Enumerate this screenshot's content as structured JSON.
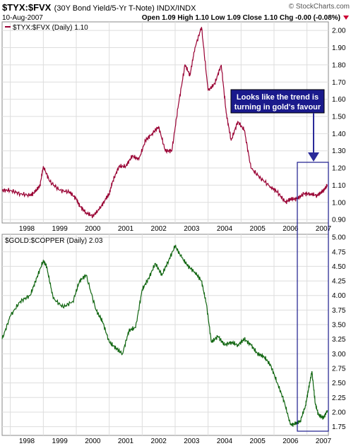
{
  "header": {
    "symbol": "$TYX:$FVX",
    "description": "(30Y Bond Yield/5-Yr T-Note)",
    "exchange": "INDX/INDX",
    "brand": "© StockCharts.com",
    "date": "10-Aug-2007",
    "quote": "Open 1.09  High 1.10  Low 1.09  Close 1.10  Chg -0.00 (-0.08%)",
    "colors": {
      "brand_text": "#555555",
      "change_arrow": "#cc0033"
    }
  },
  "annotation": {
    "line1": "Looks like the trend is",
    "line2": "turning in gold's favour",
    "box_color": "#1a1a8c",
    "arrow_color": "#2a2a99"
  },
  "chart_data": [
    {
      "type": "line",
      "legend": "$TYX:$FVX (Daily) 1.10",
      "color": "#990033",
      "ylim": [
        0.88,
        2.05
      ],
      "yticks": [
        "0.90",
        "1.00",
        "1.10",
        "1.20",
        "1.30",
        "1.40",
        "1.50",
        "1.60",
        "1.70",
        "1.80",
        "1.90",
        "2.00"
      ],
      "xticks": [
        "1998",
        "1999",
        "2000",
        "2001",
        "2002",
        "2003",
        "2004",
        "2005",
        "2006",
        "2007"
      ],
      "xlim": [
        1997.75,
        2007.65
      ],
      "x": [
        1997.75,
        1998.0,
        1998.3,
        1998.6,
        1998.75,
        1998.9,
        1999.0,
        1999.2,
        1999.5,
        1999.8,
        2000.0,
        2000.1,
        2000.3,
        2000.5,
        2000.7,
        2000.9,
        2001.0,
        2001.1,
        2001.3,
        2001.5,
        2001.7,
        2001.9,
        2002.1,
        2002.3,
        2002.5,
        2002.7,
        2002.9,
        2003.1,
        2003.3,
        2003.45,
        2003.6,
        2003.8,
        2004.0,
        2004.2,
        2004.4,
        2004.55,
        2004.7,
        2004.9,
        2005.1,
        2005.3,
        2005.6,
        2005.9,
        2006.1,
        2006.35,
        2006.5,
        2006.7,
        2006.9,
        2007.1,
        2007.3,
        2007.45,
        2007.55,
        2007.62
      ],
      "y": [
        1.07,
        1.07,
        1.05,
        1.04,
        1.06,
        1.1,
        1.21,
        1.12,
        1.07,
        1.06,
        1.02,
        0.98,
        0.94,
        0.92,
        0.96,
        1.02,
        1.05,
        1.12,
        1.21,
        1.21,
        1.27,
        1.25,
        1.36,
        1.4,
        1.44,
        1.3,
        1.3,
        1.57,
        1.8,
        1.74,
        1.9,
        2.02,
        1.65,
        1.69,
        1.8,
        1.52,
        1.36,
        1.47,
        1.42,
        1.2,
        1.14,
        1.09,
        1.06,
        1.0,
        1.02,
        1.02,
        1.05,
        1.05,
        1.04,
        1.06,
        1.08,
        1.1
      ]
    },
    {
      "type": "line",
      "legend": "$GOLD:$COPPER (Daily) 2.03",
      "color": "#116611",
      "ylim": [
        1.6,
        5.05
      ],
      "yticks": [
        "1.75",
        "2.00",
        "2.25",
        "2.50",
        "2.75",
        "3.00",
        "3.25",
        "3.50",
        "3.75",
        "4.00",
        "4.25",
        "4.50",
        "4.75",
        "5.00"
      ],
      "xticks": [
        "1998",
        "1999",
        "2000",
        "2001",
        "2002",
        "2003",
        "2004",
        "2005",
        "2006",
        "2007"
      ],
      "xlim": [
        1997.75,
        2007.65
      ],
      "x": [
        1997.75,
        1998.0,
        1998.3,
        1998.6,
        1998.8,
        1999.0,
        1999.1,
        1999.3,
        1999.6,
        1999.9,
        2000.1,
        2000.3,
        2000.6,
        2000.8,
        2001.0,
        2001.2,
        2001.4,
        2001.6,
        2001.8,
        2002.0,
        2002.2,
        2002.4,
        2002.6,
        2002.8,
        2003.0,
        2003.2,
        2003.4,
        2003.6,
        2003.8,
        2003.95,
        2004.1,
        2004.3,
        2004.5,
        2004.7,
        2004.9,
        2005.1,
        2005.3,
        2005.5,
        2005.7,
        2005.9,
        2006.1,
        2006.3,
        2006.5,
        2006.65,
        2006.8,
        2006.95,
        2007.05,
        2007.15,
        2007.25,
        2007.35,
        2007.5,
        2007.62
      ],
      "y": [
        3.25,
        3.65,
        3.9,
        4.0,
        4.3,
        4.6,
        4.5,
        3.95,
        3.8,
        3.9,
        4.25,
        4.35,
        3.75,
        3.55,
        3.2,
        3.1,
        3.0,
        3.4,
        3.45,
        4.1,
        4.3,
        4.55,
        4.35,
        4.6,
        4.85,
        4.65,
        4.5,
        4.4,
        4.25,
        3.85,
        3.2,
        3.3,
        3.15,
        3.2,
        3.15,
        3.25,
        3.15,
        3.0,
        2.95,
        2.8,
        2.5,
        2.2,
        1.78,
        1.8,
        1.85,
        2.1,
        2.4,
        2.7,
        2.15,
        1.95,
        1.9,
        2.03
      ]
    }
  ]
}
